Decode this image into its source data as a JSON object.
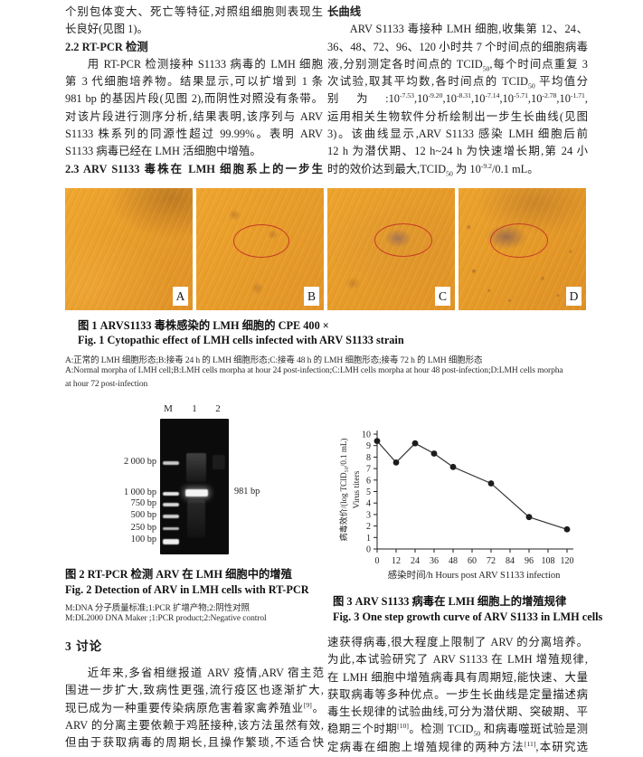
{
  "columns": {
    "top_left": {
      "lines": [
        "个别包体变大、死亡等特征,对照组细胞则表现生",
        "长良好(见图 1)。",
        "2.2  RT-PCR 检测",
        "用 RT-PCR 检测接种 S1133 病毒的 LMH 细胞",
        "第 3 代细胞培养物。结果显示,可以扩增到 1 条",
        "981 bp 的基因片段(见图 2),而阴性对照没有条带。",
        "对该片段进行测序分析,结果表明,该序列与 ARV",
        "S1133 株系列的同源性超过 99.99%。表明 ARV",
        "S1133 病毒已经在 LMH 活细胞中增殖。",
        "2.3  ARV S1133 毒株在 LMH 细胞系上的一步生"
      ]
    },
    "top_right": {
      "lines": [
        "长曲线",
        "ARV S1133 毒接种 LMH 细胞,收集第 12、24、",
        "36、48、72、96、120 小时共 7 个时间点的细胞病毒",
        "液,分别测定各时间点的 TCID<sub>50</sub>,每个时间点重复 3",
        "次试验,取其平均数,各时间点的 TCID<sub>50</sub> 平均值分",
        "别为:10<sup>-7.53</sup>,10<sup>-9.20</sup>,10<sup>-8.31</sup>,10<sup>-7.14</sup>,10<sup>-5.71</sup>,10<sup>-2.78</sup>,10<sup>-1.71</sup>,",
        "运用相关生物软件分析绘制出一步生长曲线(见图",
        "3)。该曲线显示,ARV S1133 感染 LMH 细胞后前",
        "12 h 为潜伏期、12 h~24 h 为快速增长期,第 24 小",
        "时的效价达到最大,TCID<sub>50</sub> 为 10<sup>-9.2</sup>/0.1 mL。"
      ]
    },
    "bottom_left": {
      "heading": "3  讨论",
      "lines": [
        "近年来,多省相继报道 ARV 疫情,ARV 宿主范",
        "围进一步扩大,致病性更强,流行疫区也逐渐扩大,",
        "现已成为一种重要传染病原危害着家禽养殖业<sup>[9]</sup>。",
        "ARV 的分离主要依赖于鸡胚接种,该方法虽然有效,",
        "但由于获取病毒的周期长,且操作繁琐,不适合快"
      ]
    },
    "bottom_right": {
      "lines": [
        "速获得病毒,很大程度上限制了 ARV 的分离培养。",
        "为此,本试验研究了 ARV S1133 在 LMH 增殖规律,",
        "在 LMH 细胞中增殖病毒具有周期短,能快速、大量",
        "获取病毒等多种优点。一步生长曲线是定量描述病",
        "毒生长规律的试验曲线,可分为潜伏期、突破期、平",
        "稳期三个时期<sup>[10]</sup>。检测 TCID<sub>50</sub> 和病毒噬斑试验是测",
        "定病毒在细胞上增殖规律的两种方法<sup>[11]</sup>,本研究选"
      ]
    }
  },
  "figure1": {
    "panels": [
      {
        "label": "A"
      },
      {
        "label": "B"
      },
      {
        "label": "C"
      },
      {
        "label": "D"
      }
    ],
    "caption_zh": "图 1  ARVS1133 毒株感染的 LMH 细胞的 CPE  400 ×",
    "caption_en": "Fig. 1  Cytopathic effect of LMH cells infected with ARV S1133 strain",
    "note_zh": "A:正常的 LMH 细胞形态;B:接毒 24 h 的 LMH 细胞形态;C:接毒 48 h 的 LMH 细胞形态;接毒 72 h 的 LMH 细胞形态",
    "note_en_1": "A:Normal morpha of LMH cell;B:LMH cells morpha at hour 24 post-infection;C:LMH cells morpha at hour 48 post-infection;D:LMH cells morpha",
    "note_en_2": "at hour 72 post-infection"
  },
  "figure2": {
    "lanes": [
      "M",
      "1",
      "2"
    ],
    "marker_labels": [
      "2 000 bp",
      "1 000 bp",
      "750 bp",
      "500 bp",
      "250 bp",
      "100 bp"
    ],
    "product_label": "981 bp",
    "caption_zh": "图 2  RT-PCR 检测 ARV 在 LMH 细胞中的增殖",
    "caption_en": "Fig. 2  Detection of ARV in LMH cells with RT-PCR",
    "note_zh": "M:DNA 分子质量标准;1:PCR 扩增产物;2:阴性对照",
    "note_en": "M:DL2000 DNA Maker ;1:PCR product;2:Negative control"
  },
  "figure3": {
    "caption_zh": "图 3  ARV S1133 病毒在 LMH 细胞上的增殖规律",
    "caption_en": "Fig. 3  One step growth curve of ARV S1133 in LMH cells"
  },
  "chart_data": {
    "type": "line",
    "x": [
      0,
      12,
      24,
      36,
      48,
      72,
      96,
      120
    ],
    "y": [
      9.4,
      7.53,
      9.2,
      8.31,
      7.14,
      5.71,
      2.78,
      1.71
    ],
    "x_ticks": [
      0,
      12,
      24,
      36,
      48,
      60,
      72,
      84,
      96,
      108,
      120
    ],
    "ylim": [
      0,
      10
    ],
    "y_tick_step": 1,
    "xlabel": "感染时间/h Hours post ARV S1133 infection",
    "ylabel_zh": "病毒效价/(log TCID₅₀/0.1 mL)",
    "ylabel_en": "Virus titers",
    "marker": "filled-circle",
    "line_color": "#333333",
    "grid": false,
    "legend": "none"
  }
}
